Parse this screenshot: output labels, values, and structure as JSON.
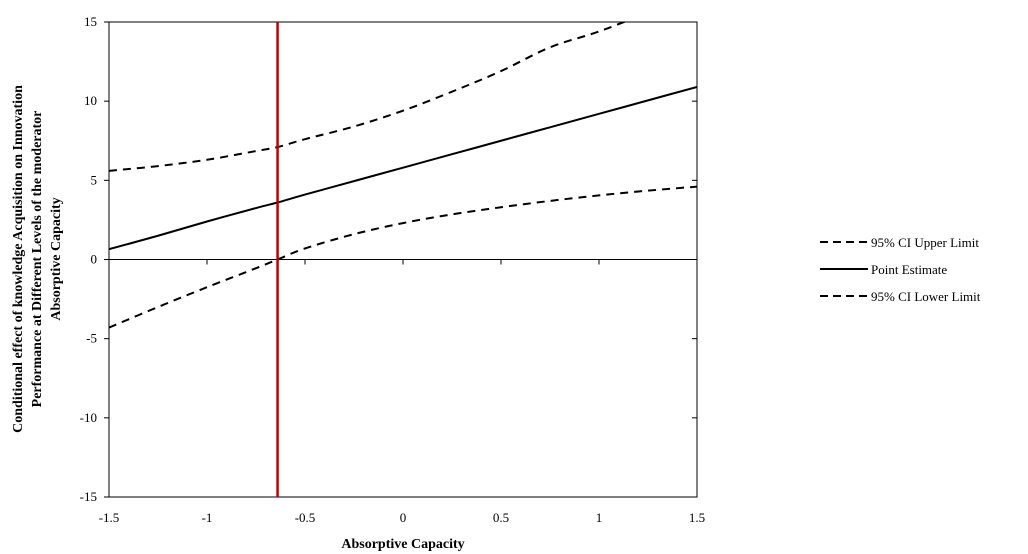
{
  "chart_data": {
    "type": "line",
    "xlabel": "Absorptive Capacity",
    "ylabel_lines": [
      "Conditional effect of knowledge Acquisition on Innovation",
      "Performance at Different Levels of the moderator",
      "Absorptive Capacity"
    ],
    "xlim": [
      -1.5,
      1.5
    ],
    "ylim": [
      -15,
      15
    ],
    "xticks": [
      -1.5,
      -1,
      -0.5,
      0,
      0.5,
      1,
      1.5
    ],
    "xtick_labels": [
      "-1.5",
      "-1",
      "-0.5",
      "0",
      "0.5",
      "1",
      "1.5"
    ],
    "yticks": [
      -15,
      -10,
      -5,
      0,
      5,
      10,
      15
    ],
    "ytick_labels": [
      "-15",
      "-10",
      "-5",
      "0",
      "5",
      "10",
      "15"
    ],
    "grid": false,
    "legend_position": "right",
    "x": [
      -1.5,
      -1.25,
      -1.0,
      -0.75,
      -0.64,
      -0.5,
      -0.25,
      0.0,
      0.25,
      0.5,
      0.75,
      1.0,
      1.25,
      1.5
    ],
    "series": [
      {
        "name": "95% CI Upper Limit",
        "style": "dashed",
        "color": "#000000",
        "values": [
          5.6,
          5.9,
          6.3,
          6.85,
          7.1,
          7.6,
          8.4,
          9.4,
          10.6,
          11.9,
          13.4,
          14.4,
          15.6,
          16.8
        ]
      },
      {
        "name": "Point Estimate",
        "style": "solid",
        "color": "#000000",
        "values": [
          0.65,
          1.5,
          2.4,
          3.25,
          3.6,
          4.1,
          4.95,
          5.8,
          6.65,
          7.5,
          8.35,
          9.2,
          10.05,
          10.9
        ]
      },
      {
        "name": "95% CI Lower Limit",
        "style": "dashed",
        "color": "#000000",
        "values": [
          -4.3,
          -3.0,
          -1.75,
          -0.55,
          0.0,
          0.7,
          1.6,
          2.3,
          2.85,
          3.3,
          3.7,
          4.05,
          4.35,
          4.6
        ]
      }
    ],
    "vertical_line": {
      "x": -0.64,
      "color": "#c00000"
    }
  }
}
